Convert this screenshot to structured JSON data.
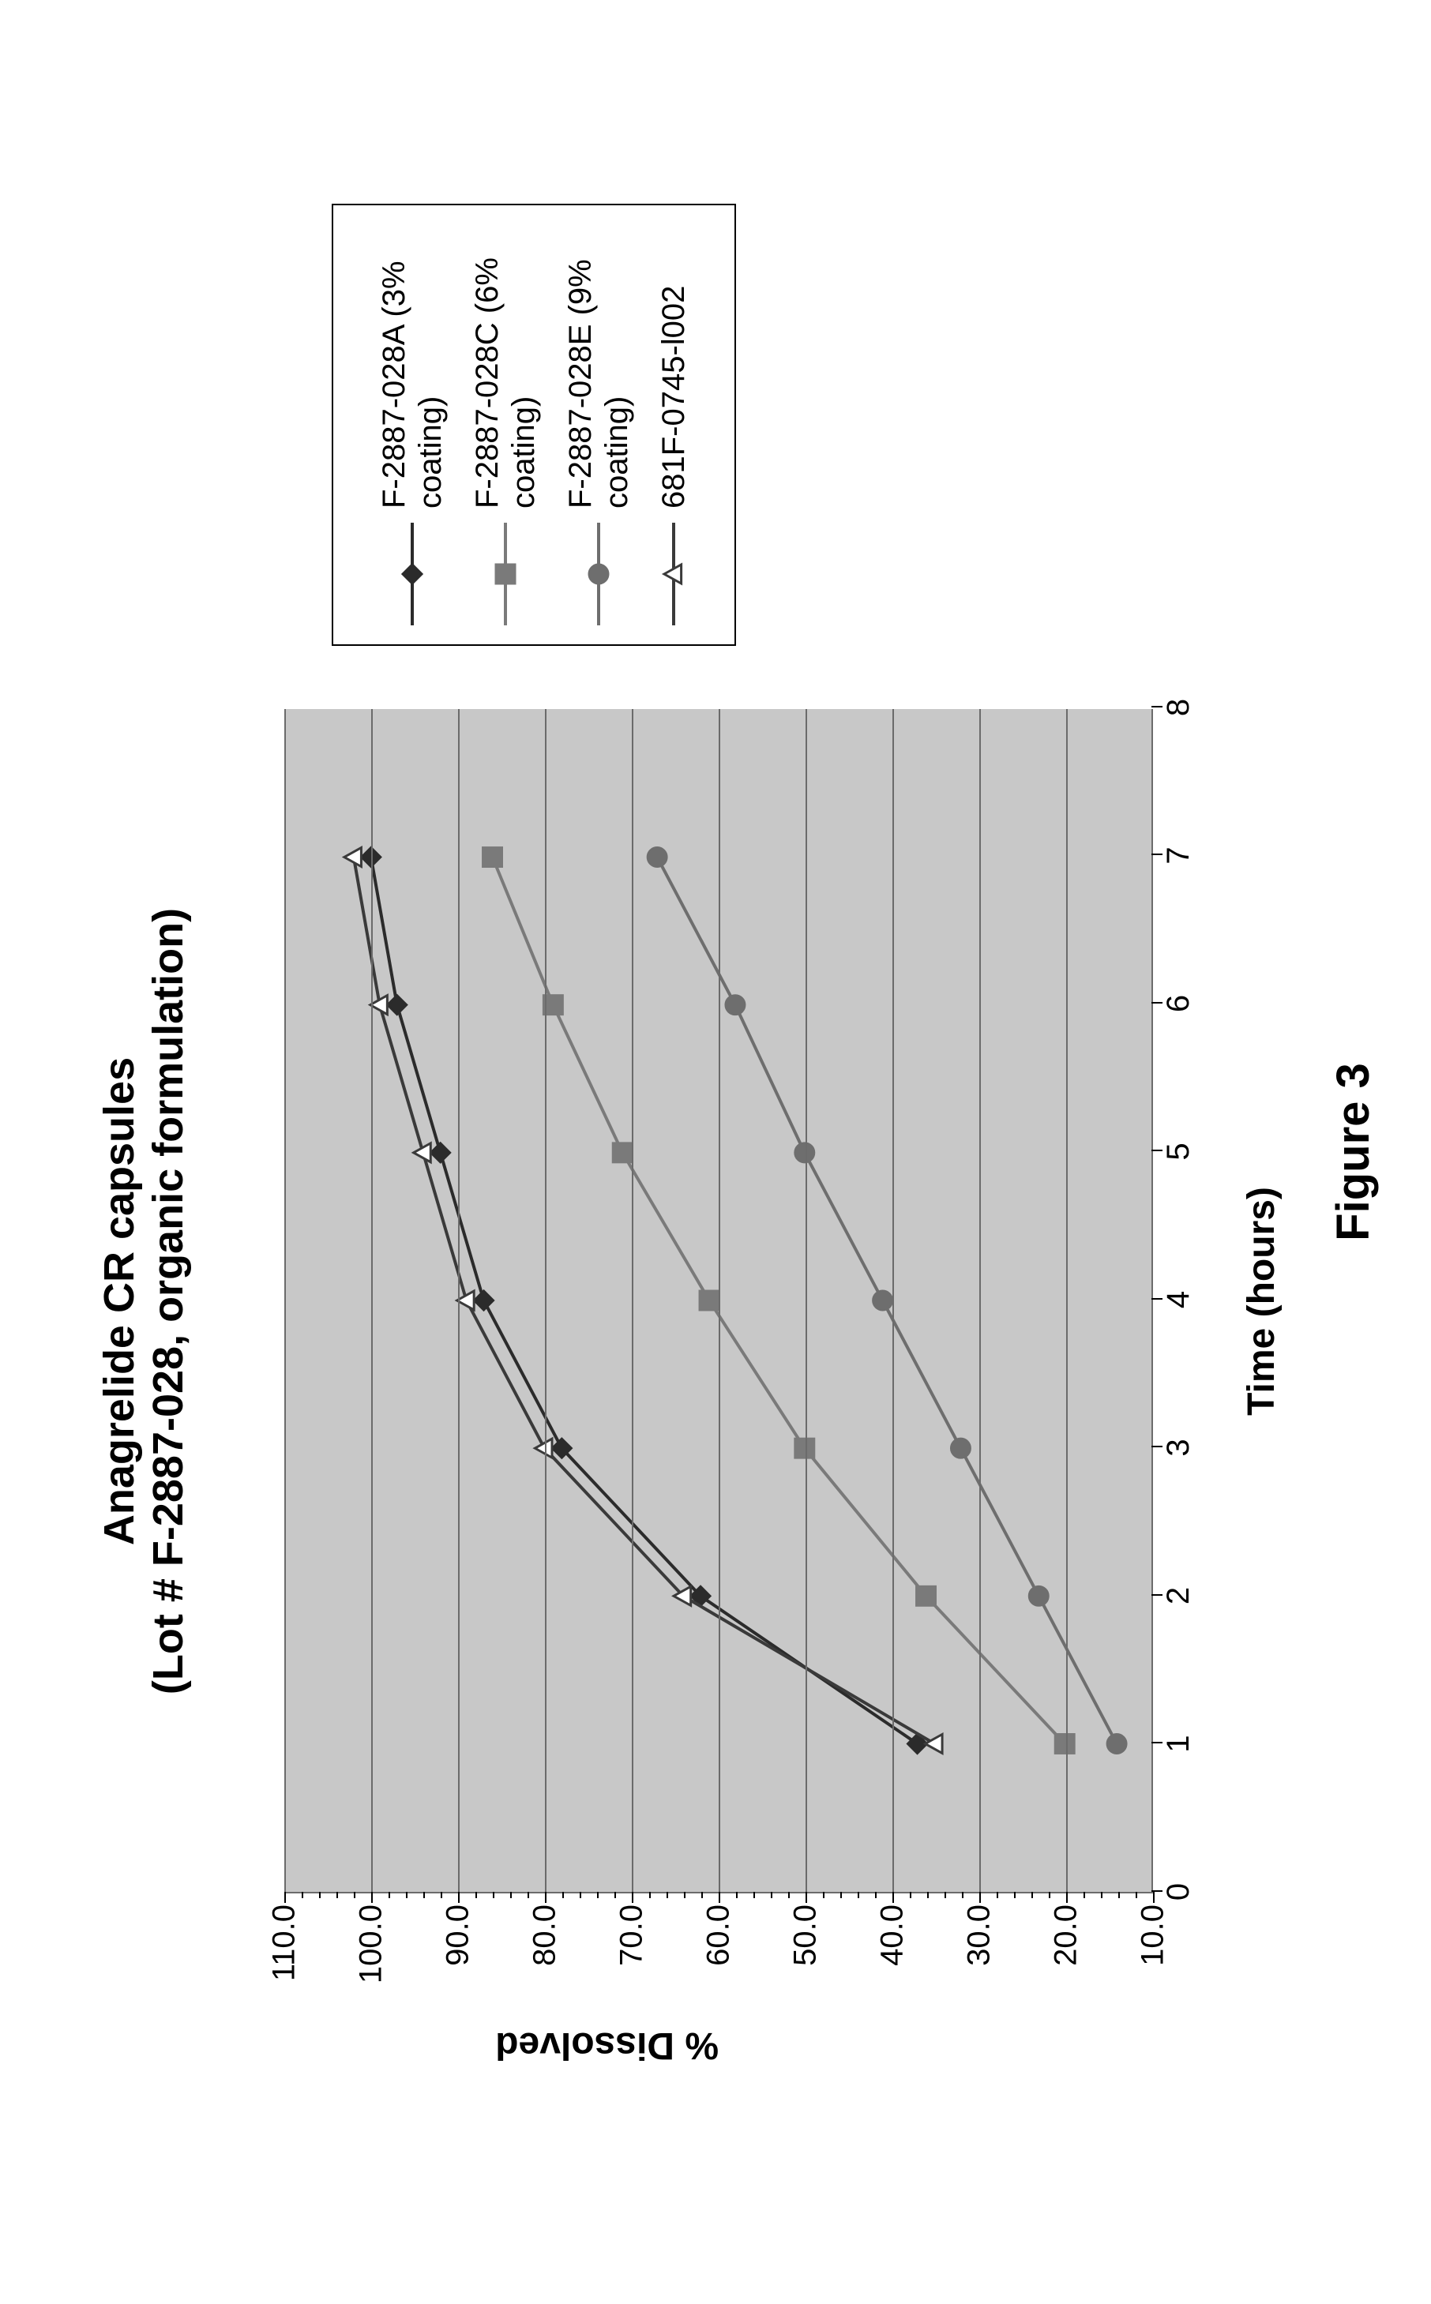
{
  "figure_caption": "Figure 3",
  "caption_fontsize": 58,
  "chart": {
    "type": "line",
    "title_line1": "Anagrelide CR capsules",
    "title_line2": "(Lot # F-2887-028, organic formulation)",
    "title_fontsize": 54,
    "x_label": "Time (hours)",
    "y_label": "% Dissolved",
    "axis_label_fontsize": 48,
    "tick_fontsize": 40,
    "legend_fontsize": 40,
    "ylim": [
      10,
      110
    ],
    "xlim": [
      0,
      8
    ],
    "y_ticks": [
      10.0,
      20.0,
      30.0,
      40.0,
      50.0,
      60.0,
      70.0,
      80.0,
      90.0,
      100.0,
      110.0
    ],
    "x_ticks": [
      0,
      1,
      2,
      3,
      4,
      5,
      6,
      7,
      8
    ],
    "y_tick_labels": [
      "10.0",
      "20.0",
      "30.0",
      "40.0",
      "50.0",
      "60.0",
      "70.0",
      "80.0",
      "90.0",
      "100.0",
      "110.0"
    ],
    "x_tick_labels": [
      "0",
      "1",
      "2",
      "3",
      "4",
      "5",
      "6",
      "7",
      "8"
    ],
    "y_minor_step": 2.0,
    "background_color": "#c8c8c8",
    "grid_color": "#6b6b6b",
    "colors": {
      "series_a": "#2b2b2b",
      "series_c": "#7a7a7a",
      "series_e": "#6e6e6e",
      "series_ref": "#3a3a3a"
    },
    "line_width": 4,
    "marker_size": 24,
    "series": [
      {
        "id": "series_a",
        "label": "F-2887-028A (3% coating)",
        "marker": "diamond",
        "fill": true,
        "x": [
          1,
          2,
          3,
          4,
          5,
          6,
          7
        ],
        "y": [
          37,
          62,
          78,
          87,
          92,
          97,
          100
        ]
      },
      {
        "id": "series_c",
        "label": "F-2887-028C (6% coating)",
        "marker": "square",
        "fill": true,
        "x": [
          1,
          2,
          3,
          4,
          5,
          6,
          7
        ],
        "y": [
          20,
          36,
          50,
          61,
          71,
          79,
          86
        ]
      },
      {
        "id": "series_e",
        "label": "F-2887-028E (9% coating)",
        "marker": "circle",
        "fill": true,
        "x": [
          1,
          2,
          3,
          4,
          5,
          6,
          7
        ],
        "y": [
          14,
          23,
          32,
          41,
          50,
          58,
          67
        ]
      },
      {
        "id": "series_ref",
        "label": "681F-0745-l002",
        "marker": "triangle",
        "fill": false,
        "x": [
          1,
          2,
          3,
          4,
          5,
          6,
          7
        ],
        "y": [
          35,
          64,
          80,
          89,
          94,
          99,
          102
        ]
      }
    ]
  }
}
